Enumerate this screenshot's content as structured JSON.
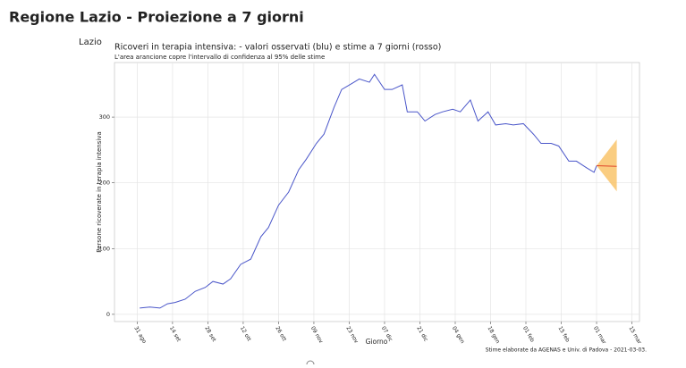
{
  "page_title": "Regione Lazio - Proiezione a 7 giorni",
  "region_label": "Lazio",
  "chart_data": {
    "type": "line",
    "title": "Ricoveri in terapia intensiva: - valori osservati (blu) e stime a 7 giorni (rosso)",
    "subtitle": "L'area arancione copre l'intervallo di confidenza al 95% delle stime",
    "x_label": "Giorno",
    "y_label": "Persone ricoverate in terapia intensiva",
    "caption": "Stime elaborate da AGENAS e Univ. di Padova - 2021-03-03.",
    "grid": true,
    "xlim": [
      -9,
      199
    ],
    "ylim": [
      -11,
      383
    ],
    "xticks": [
      {
        "value": 0,
        "label": "31 ago"
      },
      {
        "value": 14,
        "label": "14 set"
      },
      {
        "value": 28,
        "label": "28 set"
      },
      {
        "value": 42,
        "label": "12 ott"
      },
      {
        "value": 56,
        "label": "26 ott"
      },
      {
        "value": 70,
        "label": "09 nov"
      },
      {
        "value": 84,
        "label": "23 nov"
      },
      {
        "value": 98,
        "label": "07 dic"
      },
      {
        "value": 112,
        "label": "21 dic"
      },
      {
        "value": 126,
        "label": "04 gen"
      },
      {
        "value": 140,
        "label": "18 gen"
      },
      {
        "value": 154,
        "label": "01 feb"
      },
      {
        "value": 168,
        "label": "15 feb"
      },
      {
        "value": 182,
        "label": "01 mar"
      },
      {
        "value": 196,
        "label": "15 mar"
      }
    ],
    "yticks": [
      0,
      100,
      200,
      300
    ],
    "observed": {
      "color": "#4a56c9",
      "x": [
        1,
        5,
        9,
        12,
        15,
        19,
        23,
        27,
        30,
        34,
        37,
        41,
        45,
        49,
        52,
        56,
        60,
        64,
        67,
        71,
        74,
        78,
        81,
        85,
        88,
        92,
        94,
        98,
        101,
        105,
        107,
        111,
        114,
        118,
        121,
        125,
        128,
        132,
        135,
        139,
        142,
        146,
        149,
        153,
        157,
        160,
        164,
        167,
        171,
        174,
        178,
        181,
        182
      ],
      "values": [
        9.5,
        11,
        9.5,
        16,
        18,
        23,
        35,
        41,
        50,
        46,
        54,
        76,
        84,
        118,
        132,
        166,
        186,
        220,
        236,
        260,
        274,
        315,
        342,
        351,
        358,
        353,
        365,
        342,
        342,
        349,
        308,
        308,
        294,
        304,
        308,
        312,
        308,
        326,
        294,
        308,
        288,
        290,
        288,
        290,
        274,
        260,
        260,
        256,
        233,
        233,
        223,
        216,
        226
      ]
    },
    "forecast": {
      "color": "#e0452b",
      "x": [
        182,
        190
      ],
      "values": [
        226,
        225
      ]
    },
    "interval": {
      "color": "#f9c46b",
      "x": [
        182,
        190
      ],
      "lower": [
        226,
        187
      ],
      "upper": [
        226,
        266
      ]
    }
  }
}
